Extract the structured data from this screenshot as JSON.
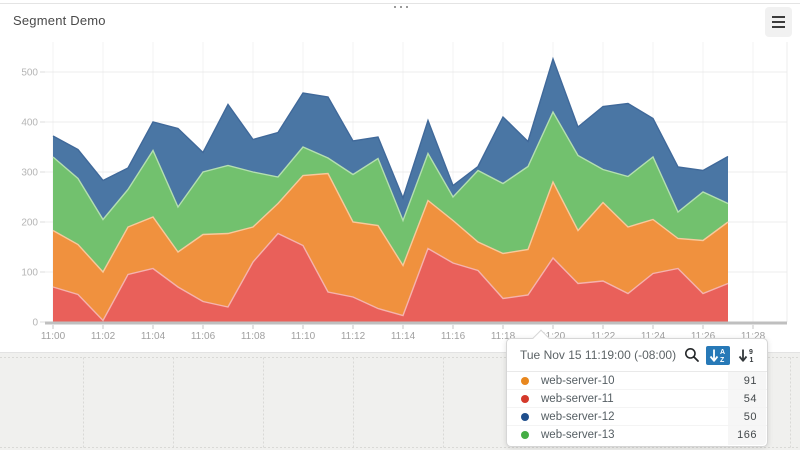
{
  "panel": {
    "title": "Segment Demo",
    "drag_handle_icon": "ellipsis-drag-handle",
    "menu_icon": "hamburger-menu"
  },
  "chart_data": {
    "type": "area",
    "stacked": true,
    "stack_order_bottom_to_top": [
      "web-server-11",
      "web-server-10",
      "web-server-13",
      "web-server-12"
    ],
    "x": [
      "11:00",
      "11:01",
      "11:02",
      "11:03",
      "11:04",
      "11:05",
      "11:06",
      "11:07",
      "11:08",
      "11:09",
      "11:10",
      "11:11",
      "11:12",
      "11:13",
      "11:14",
      "11:15",
      "11:16",
      "11:17",
      "11:18",
      "11:19",
      "11:20",
      "11:21",
      "11:22",
      "11:23",
      "11:24",
      "11:25",
      "11:26",
      "11:27"
    ],
    "x_axis_labels": [
      "11:00",
      "11:02",
      "11:04",
      "11:06",
      "11:08",
      "11:10",
      "11:12",
      "11:14",
      "11:16",
      "11:18",
      "11:20",
      "11:22",
      "11:24",
      "11:26",
      "11:28"
    ],
    "y_ticks": [
      0,
      100,
      200,
      300,
      400,
      500
    ],
    "ylim": [
      0,
      550
    ],
    "grid": true,
    "series": [
      {
        "name": "web-server-11",
        "color": "#e9605a",
        "edge": "#f5b3ae",
        "values": [
          70,
          55,
          3,
          95,
          107,
          70,
          41,
          30,
          120,
          177,
          153,
          60,
          50,
          27,
          13,
          147,
          118,
          103,
          47,
          54,
          128,
          77,
          82,
          57,
          97,
          107,
          57,
          77
        ]
      },
      {
        "name": "web-server-10",
        "color": "#f0913e",
        "edge": "#f8c99c",
        "values": [
          113,
          100,
          97,
          95,
          103,
          70,
          134,
          147,
          70,
          60,
          140,
          237,
          150,
          166,
          100,
          96,
          85,
          57,
          90,
          91,
          152,
          106,
          157,
          133,
          108,
          60,
          106,
          123
        ]
      },
      {
        "name": "web-server-13",
        "color": "#72c16e",
        "edge": "#b4dfb0",
        "values": [
          147,
          132,
          105,
          75,
          133,
          90,
          125,
          136,
          110,
          53,
          57,
          31,
          95,
          134,
          90,
          94,
          47,
          143,
          140,
          166,
          140,
          150,
          66,
          101,
          125,
          53,
          97,
          37
        ]
      },
      {
        "name": "web-server-12",
        "color": "#4a76a4",
        "edge": "#40699a",
        "values": [
          42,
          58,
          78,
          43,
          57,
          157,
          39,
          122,
          65,
          89,
          108,
          122,
          67,
          43,
          45,
          66,
          23,
          8,
          133,
          50,
          106,
          57,
          126,
          146,
          77,
          90,
          43,
          94
        ]
      }
    ]
  },
  "tooltip": {
    "timestamp": "Tue Nov 15 11:19:00 (-08:00)",
    "icons": [
      "search-icon",
      "sort-alpha-icon",
      "sort-numeric-icon"
    ],
    "active_sort": "alphabetical",
    "rows": [
      {
        "name": "web-server-10",
        "color": "#e8871e",
        "value": "91"
      },
      {
        "name": "web-server-11",
        "color": "#d4392b",
        "value": "54"
      },
      {
        "name": "web-server-12",
        "color": "#1f4e8c",
        "value": "50"
      },
      {
        "name": "web-server-13",
        "color": "#44ad44",
        "value": "166"
      }
    ]
  }
}
